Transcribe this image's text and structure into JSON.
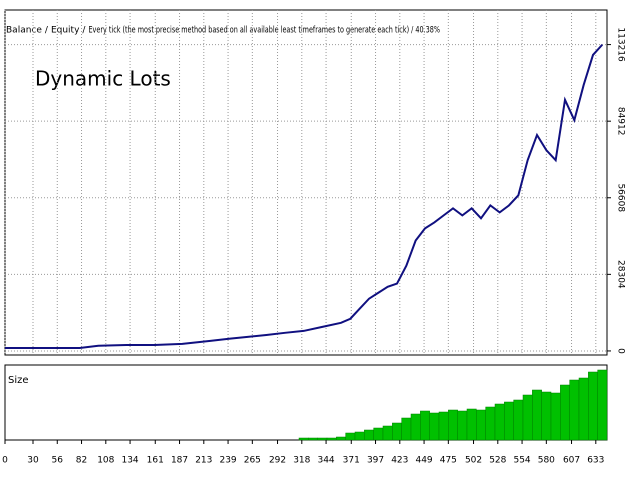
{
  "chart_data": [
    {
      "type": "line",
      "legend": [
        {
          "name": "Balance",
          "color": "#1e3c96"
        },
        {
          "name": "Equity",
          "color": "#11a011"
        }
      ],
      "subtitle": "Every tick (the most precise method based on all available least timeframes to generate each tick) / 40.38%",
      "annotation": "Dynamic Lots",
      "annotation_color": "#e84040",
      "grid": true,
      "xlim": [
        0,
        645
      ],
      "ylim": [
        -1500,
        126000
      ],
      "yticks": [
        0,
        28304,
        56608,
        84912,
        113216
      ],
      "series": [
        {
          "name": "Balance",
          "color": "#101080",
          "x": [
            0,
            40,
            80,
            100,
            130,
            160,
            190,
            220,
            240,
            260,
            280,
            300,
            320,
            340,
            360,
            370,
            380,
            390,
            400,
            410,
            420,
            430,
            440,
            450,
            460,
            470,
            480,
            490,
            500,
            510,
            520,
            530,
            540,
            550,
            560,
            570,
            580,
            590,
            600,
            610,
            620,
            630,
            640
          ],
          "values": [
            1100,
            1100,
            1100,
            1900,
            2200,
            2200,
            2600,
            3700,
            4500,
            5200,
            5900,
            6700,
            7400,
            8900,
            10400,
            11900,
            15600,
            19300,
            21500,
            23700,
            24900,
            31500,
            40800,
            45300,
            47500,
            50100,
            52700,
            50100,
            52700,
            49000,
            53800,
            51200,
            53800,
            57500,
            70500,
            79800,
            74200,
            70500,
            92800,
            85300,
            98300,
            109400,
            113200
          ]
        }
      ]
    },
    {
      "type": "bar",
      "title": "Size",
      "color": "#00c000",
      "xlim": [
        0,
        645
      ],
      "ylim": [
        0,
        75
      ],
      "xticks": [
        0,
        30,
        56,
        82,
        108,
        134,
        161,
        187,
        213,
        239,
        265,
        292,
        318,
        344,
        371,
        397,
        423,
        449,
        475,
        502,
        528,
        554,
        580,
        607,
        633
      ],
      "x": [
        320,
        330,
        340,
        350,
        360,
        370,
        380,
        390,
        400,
        410,
        420,
        430,
        440,
        450,
        460,
        470,
        480,
        490,
        500,
        510,
        520,
        530,
        540,
        550,
        560,
        570,
        580,
        590,
        600,
        610,
        620,
        630,
        640
      ],
      "values": [
        2,
        2,
        2,
        2,
        3,
        7,
        8,
        10,
        12,
        14,
        17,
        22,
        26,
        29,
        27,
        28,
        30,
        29,
        31,
        30,
        33,
        36,
        38,
        40,
        45,
        50,
        48,
        47,
        55,
        60,
        62,
        68,
        70
      ]
    }
  ]
}
